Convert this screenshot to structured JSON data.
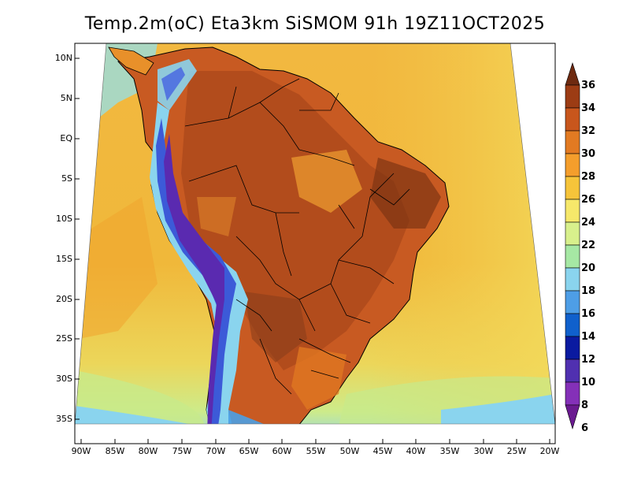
{
  "title": "Temp.2m(oC) Eta3km SiSMOM 91h 19Z11OCT2025",
  "colors": {
    "ocean_warm": "#ecd050",
    "ocean_mid": "#f2a830",
    "land_hot": "#c85a22",
    "land_very_hot": "#8a3e1a",
    "south_cool": "#c6ea88",
    "cold_edge": "#8ccff0"
  },
  "latitude_labels": [
    "10N",
    "5N",
    "EQ",
    "5S",
    "10S",
    "15S",
    "20S",
    "25S",
    "30S",
    "35S"
  ],
  "longitude_labels": [
    "90W",
    "85W",
    "80W",
    "75W",
    "70W",
    "65W",
    "60W",
    "55W",
    "50W",
    "45W",
    "40W",
    "35W",
    "30W",
    "25W",
    "20W"
  ],
  "colorbar": {
    "labels": [
      "36",
      "34",
      "32",
      "30",
      "28",
      "26",
      "24",
      "22",
      "20",
      "18",
      "16",
      "14",
      "12",
      "10",
      "8",
      "6"
    ],
    "colors": [
      "#6e2a10",
      "#9c3c14",
      "#c8561c",
      "#e27a22",
      "#f49e2c",
      "#f6c43a",
      "#f6e86a",
      "#d8f08c",
      "#a6e8a4",
      "#8ad4ee",
      "#4e9ee6",
      "#1060cc",
      "#0a1aa0",
      "#5030b0",
      "#8430b8",
      "#6a1a90"
    ]
  }
}
